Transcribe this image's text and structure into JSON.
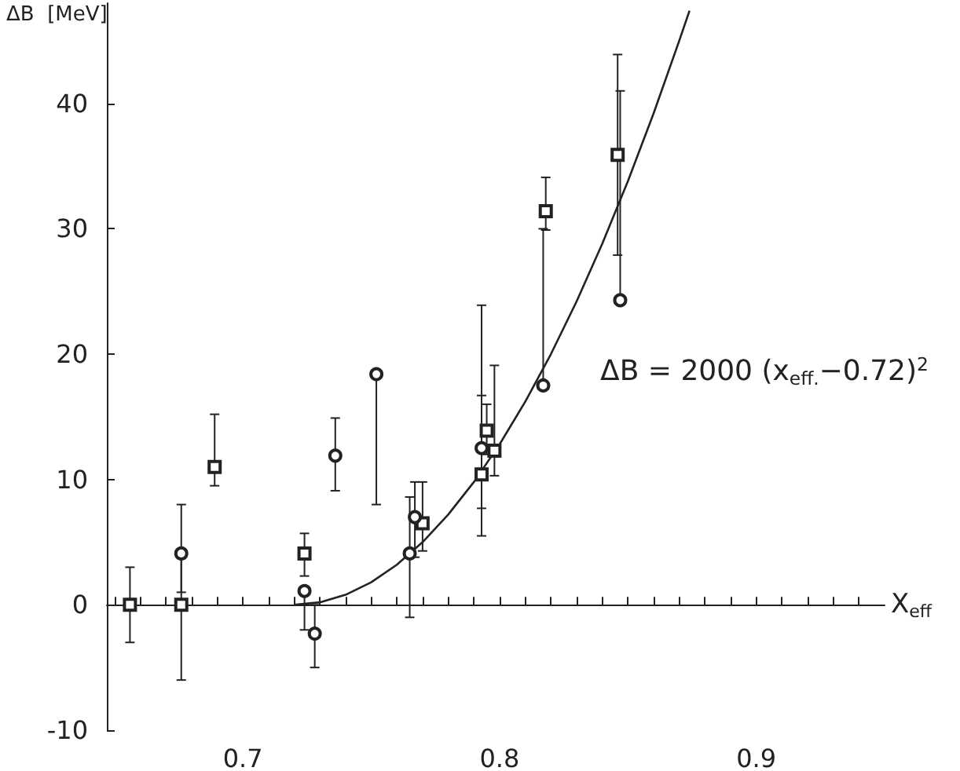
{
  "chart_data": {
    "type": "scatter",
    "xlabel": "X$_{eff}$",
    "ylabel": "ΔB  [MeV]",
    "xlim": [
      0.647,
      0.95
    ],
    "ylim": [
      -10,
      48
    ],
    "xticks": [
      {
        "value": 0.65,
        "label": null
      },
      {
        "value": 0.66,
        "label": null
      },
      {
        "value": 0.67,
        "label": null
      },
      {
        "value": 0.68,
        "label": null
      },
      {
        "value": 0.69,
        "label": null
      },
      0.7,
      {
        "value": 0.71,
        "label": null
      },
      {
        "value": 0.72,
        "label": null
      },
      {
        "value": 0.73,
        "label": null
      },
      {
        "value": 0.74,
        "label": null
      },
      {
        "value": 0.75,
        "label": null
      },
      {
        "value": 0.76,
        "label": null
      },
      {
        "value": 0.77,
        "label": null
      },
      {
        "value": 0.78,
        "label": null
      },
      {
        "value": 0.79,
        "label": null
      },
      0.8,
      {
        "value": 0.81,
        "label": null
      },
      {
        "value": 0.82,
        "label": null
      },
      {
        "value": 0.83,
        "label": null
      },
      {
        "value": 0.84,
        "label": null
      },
      {
        "value": 0.85,
        "label": null
      },
      {
        "value": 0.86,
        "label": null
      },
      {
        "value": 0.87,
        "label": null
      },
      {
        "value": 0.88,
        "label": null
      },
      {
        "value": 0.89,
        "label": null
      },
      0.9,
      {
        "value": 0.91,
        "label": null
      },
      {
        "value": 0.92,
        "label": null
      },
      {
        "value": 0.93,
        "label": null
      },
      {
        "value": 0.94,
        "label": null
      }
    ],
    "yticks": [
      -10,
      0,
      10,
      20,
      30,
      40
    ],
    "annotations": [
      "ΔB = 2000 (x$_{eff.}$−0.72)$^{2}$"
    ],
    "series": [
      {
        "marker": "circle",
        "color": "#222222",
        "x": [
          0.676,
          0.736,
          0.752,
          0.724,
          0.728,
          0.765,
          0.767,
          0.793,
          0.817,
          0.847
        ],
        "values": [
          4.1,
          11.9,
          18.4,
          1.1,
          -2.3,
          4.1,
          7.0,
          12.5,
          17.5,
          24.3
        ],
        "errors": [
          [
            1,
            8
          ],
          [
            9.1,
            14.9
          ],
          [
            8,
            18.4
          ],
          [
            -2,
            1.1
          ],
          [
            -5,
            0
          ],
          [
            -1,
            8.6
          ],
          [
            3.8,
            9.8
          ],
          [
            7.7,
            23.9
          ],
          [
            17.5,
            30
          ],
          [
            24.3,
            41
          ]
        ]
      },
      {
        "marker": "square",
        "color": "#222222",
        "x": [
          0.656,
          0.676,
          0.689,
          0.724,
          0.77,
          0.793,
          0.795,
          0.798,
          0.818,
          0.846
        ],
        "values": [
          0,
          0,
          11,
          4.1,
          6.5,
          10.4,
          13.9,
          12.3,
          31.4,
          35.9
        ],
        "errors": [
          3,
          [
            -6,
            3.7
          ],
          [
            9.5,
            15.2
          ],
          [
            2.3,
            5.7
          ],
          [
            4.3,
            9.8
          ],
          [
            5.5,
            16.7
          ],
          [
            12,
            16
          ],
          [
            10.3,
            19.1
          ],
          [
            29.9,
            34.1
          ],
          [
            27.9,
            43.9
          ]
        ]
      },
      {
        "type": "line",
        "color": "#222222",
        "marker": "none",
        "line_style": "solid",
        "x": [
          0.72,
          0.73,
          0.74,
          0.75,
          0.76,
          0.77,
          0.78,
          0.79,
          0.8,
          0.81,
          0.82,
          0.83,
          0.84,
          0.85,
          0.86,
          0.87,
          0.874
        ],
        "values": [
          0,
          0.2,
          0.8,
          1.8,
          3.2,
          5,
          7.2,
          9.8,
          12.8,
          16.2,
          20,
          24.2,
          28.8,
          33.8,
          39.2,
          45,
          47.4
        ]
      }
    ]
  }
}
